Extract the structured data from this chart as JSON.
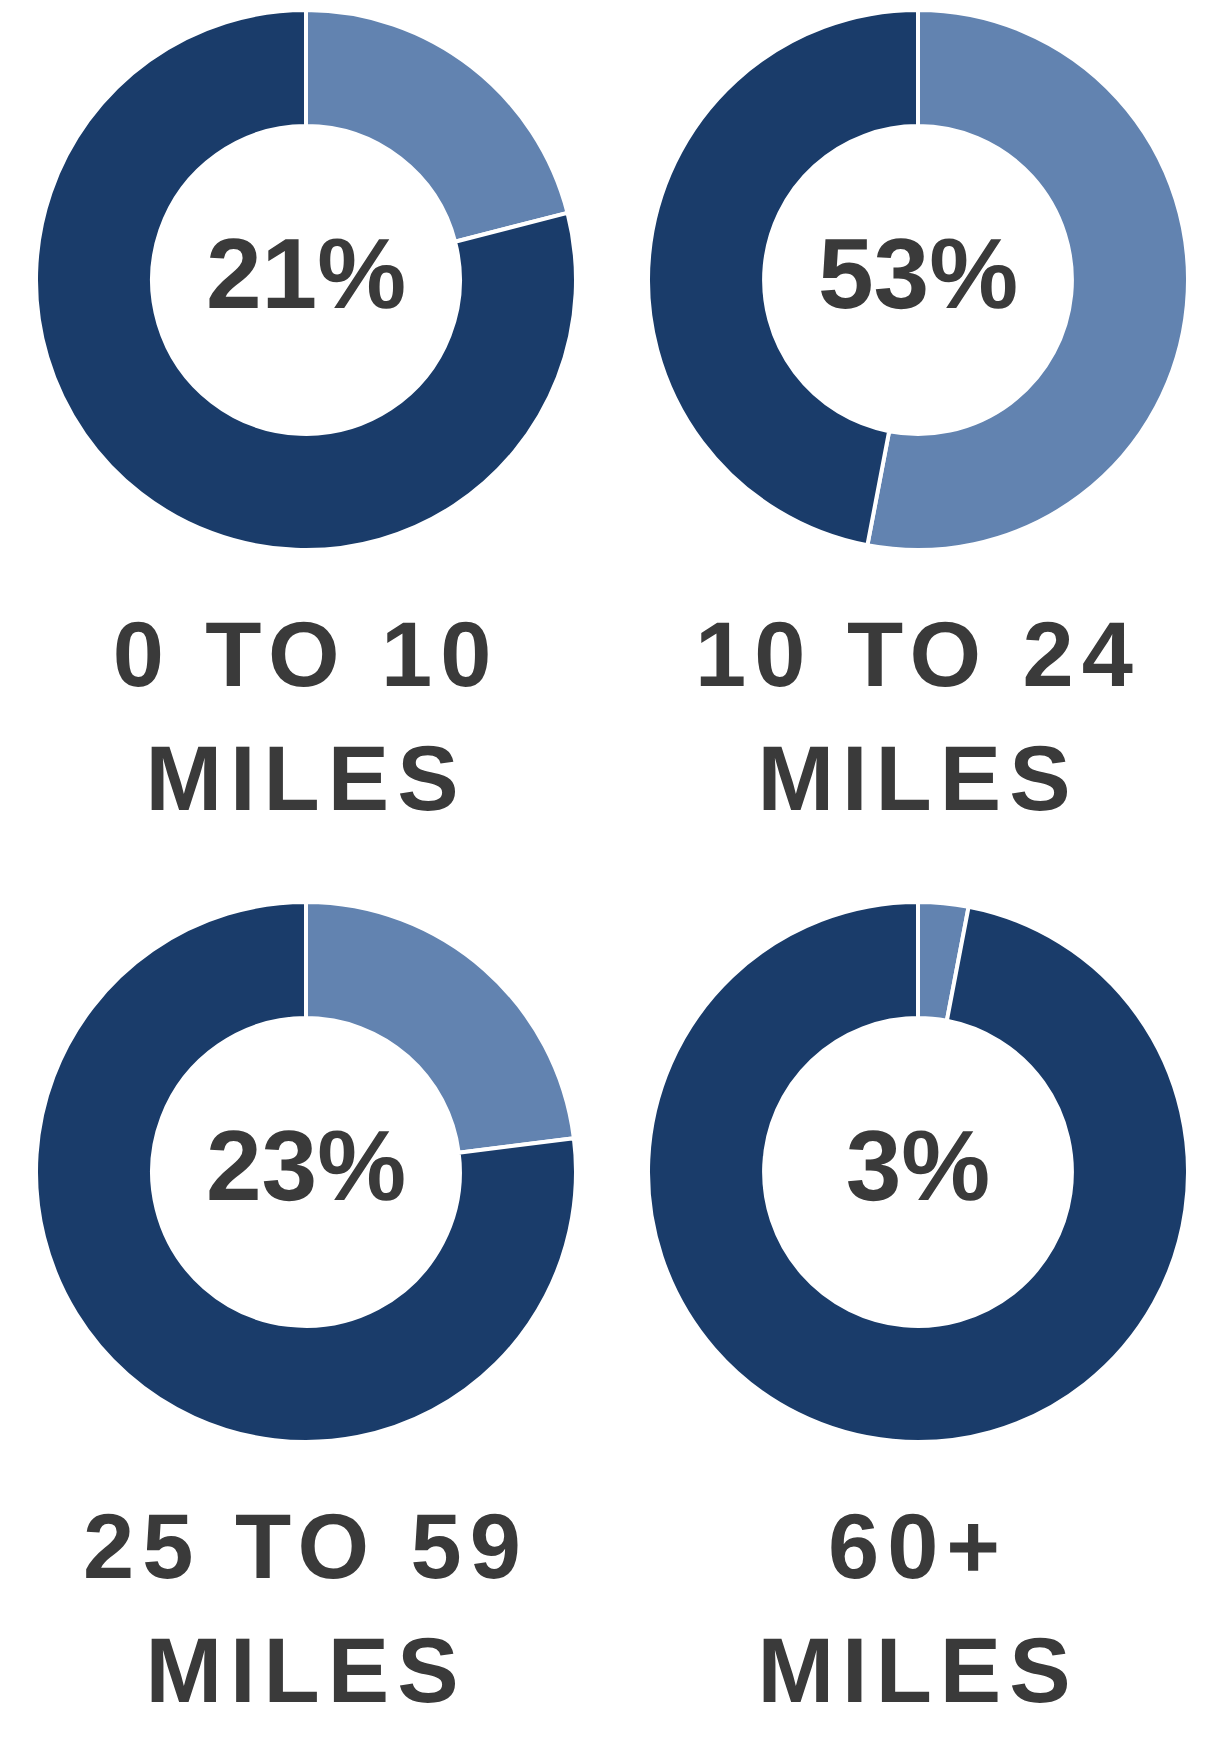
{
  "chart_data": [
    {
      "type": "donut",
      "title": "0 TO 10\nMILES",
      "categories": [
        null,
        null
      ],
      "values": [
        21,
        79
      ],
      "colors": [
        "#6283b0",
        "#1a3c6a"
      ],
      "value_labels": [
        "21%",
        null
      ]
    },
    {
      "type": "donut",
      "title": "10 TO 24\nMILES",
      "categories": [
        null,
        null
      ],
      "values": [
        53,
        47
      ],
      "colors": [
        "#6283b0",
        "#1a3c6a"
      ],
      "value_labels": [
        "53%",
        null
      ]
    },
    {
      "type": "donut",
      "title": "25 TO 59\nMILES",
      "categories": [
        null,
        null
      ],
      "values": [
        23,
        77
      ],
      "colors": [
        "#6283b0",
        "#1a3c6a"
      ],
      "value_labels": [
        "23%",
        null
      ]
    },
    {
      "type": "donut",
      "title": "60+\nMILES",
      "categories": [
        null,
        null
      ],
      "values": [
        3,
        97
      ],
      "colors": [
        "#6283b0",
        "#1a3c6a"
      ],
      "value_labels": [
        "3%",
        null
      ]
    }
  ]
}
